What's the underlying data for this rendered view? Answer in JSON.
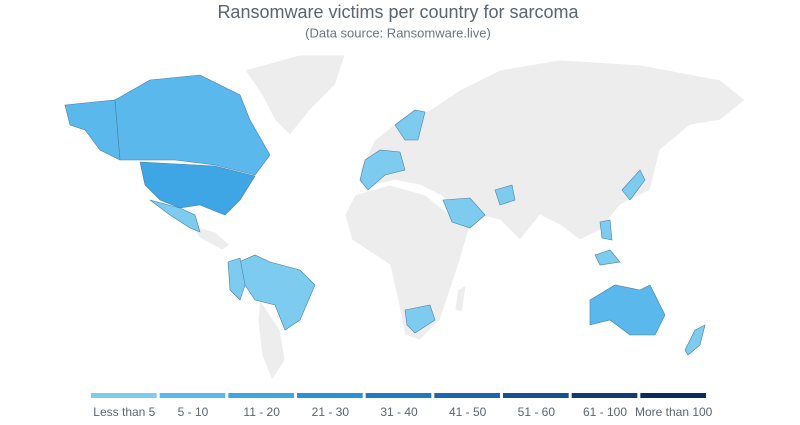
{
  "title": "Ransomware victims per country for sarcoma",
  "subtitle": "(Data source: Ransomware.live)",
  "legend": {
    "bins": [
      {
        "label": "Less than 5",
        "color": "#7ecbf0"
      },
      {
        "label": "5 - 10",
        "color": "#5bb8ec"
      },
      {
        "label": "11 - 20",
        "color": "#3fa6e6"
      },
      {
        "label": "21 - 30",
        "color": "#2a90d8"
      },
      {
        "label": "31 - 40",
        "color": "#1f7ac4"
      },
      {
        "label": "41 - 50",
        "color": "#1a65ae"
      },
      {
        "label": "51 - 60",
        "color": "#154f94"
      },
      {
        "label": "61 - 100",
        "color": "#103b78"
      },
      {
        "label": "More than 100",
        "color": "#0b2a60"
      }
    ]
  }
}
